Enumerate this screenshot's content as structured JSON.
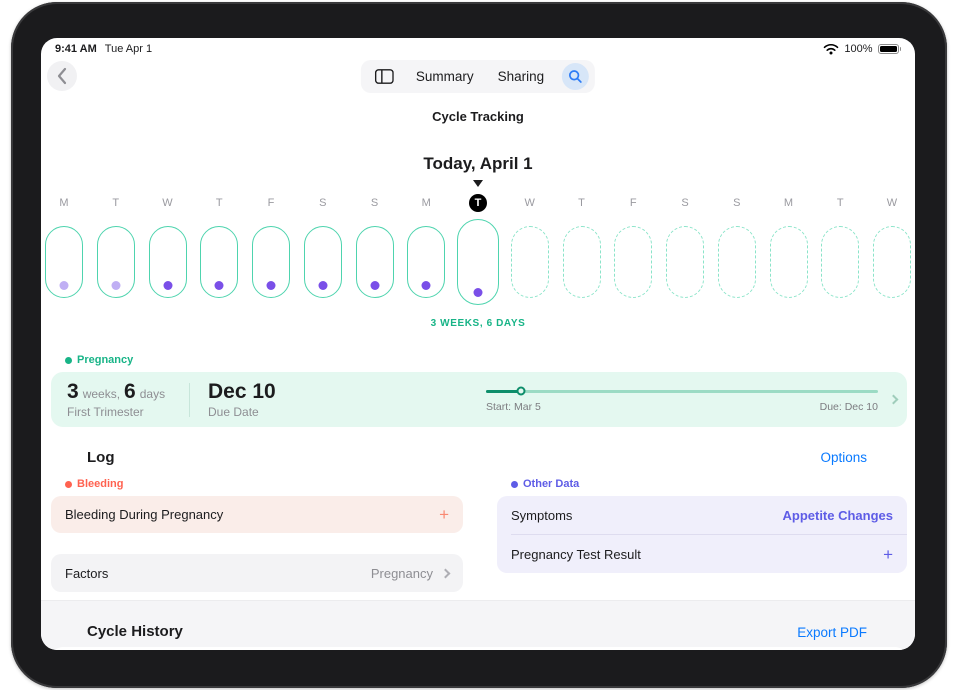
{
  "status_bar": {
    "time": "9:41 AM",
    "date": "Tue Apr 1",
    "battery_percent": "100%"
  },
  "nav": {
    "summary_label": "Summary",
    "sharing_label": "Sharing"
  },
  "page": {
    "title": "Cycle Tracking",
    "today_heading": "Today, April 1"
  },
  "timeline": {
    "weeks_label": "3 WEEKS, 6 DAYS",
    "days": [
      {
        "letter": "M",
        "state": "logged",
        "dot": "light"
      },
      {
        "letter": "T",
        "state": "logged",
        "dot": "light"
      },
      {
        "letter": "W",
        "state": "logged",
        "dot": "dark"
      },
      {
        "letter": "T",
        "state": "logged",
        "dot": "dark"
      },
      {
        "letter": "F",
        "state": "logged",
        "dot": "dark"
      },
      {
        "letter": "S",
        "state": "logged",
        "dot": "dark"
      },
      {
        "letter": "S",
        "state": "logged",
        "dot": "dark"
      },
      {
        "letter": "M",
        "state": "logged",
        "dot": "dark"
      },
      {
        "letter": "T",
        "state": "today",
        "dot": "dark"
      },
      {
        "letter": "W",
        "state": "upcoming",
        "dot": "none"
      },
      {
        "letter": "T",
        "state": "upcoming",
        "dot": "none"
      },
      {
        "letter": "F",
        "state": "upcoming",
        "dot": "none"
      },
      {
        "letter": "S",
        "state": "upcoming",
        "dot": "none"
      },
      {
        "letter": "S",
        "state": "upcoming",
        "dot": "none"
      },
      {
        "letter": "M",
        "state": "upcoming",
        "dot": "none"
      },
      {
        "letter": "T",
        "state": "upcoming",
        "dot": "none"
      },
      {
        "letter": "W",
        "state": "upcoming",
        "dot": "none"
      }
    ]
  },
  "pregnancy": {
    "section_label": "Pregnancy",
    "weeks_value": "3",
    "weeks_unit": "weeks,",
    "days_value": "6",
    "days_unit": "days",
    "stage_label": "First Trimester",
    "due_value": "Dec 10",
    "due_label": "Due Date",
    "progress_start_label": "Start: Mar 5",
    "progress_due_label": "Due: Dec 10",
    "progress_percent": 9
  },
  "log": {
    "heading": "Log",
    "options_label": "Options",
    "plus": "+",
    "bleeding_section_label": "Bleeding",
    "bleeding_item_label": "Bleeding During Pregnancy",
    "factors_label": "Factors",
    "factors_value": "Pregnancy",
    "other_data_section_label": "Other Data",
    "symptoms_label": "Symptoms",
    "symptoms_value": "Appetite Changes",
    "pregnancy_test_label": "Pregnancy Test Result"
  },
  "cycle_history": {
    "heading": "Cycle History",
    "export_label": "Export PDF"
  },
  "colors": {
    "mint": "#4ED4AE",
    "mint_dashed": "#8BE4C9",
    "teal_text": "#18B487",
    "teal_dark": "#0E8E6B",
    "mint_bg": "#E4F8F0",
    "purple_dot_dark": "#7A4FE8",
    "purple_dot_light": "#C0AFF4",
    "purple_text": "#5E5CE6",
    "purple_bg": "#F0EFFB",
    "red_text": "#FF6250",
    "red_bg": "#FAEDE9",
    "red_plus": "#F98871",
    "blue": "#0A7AFF"
  }
}
